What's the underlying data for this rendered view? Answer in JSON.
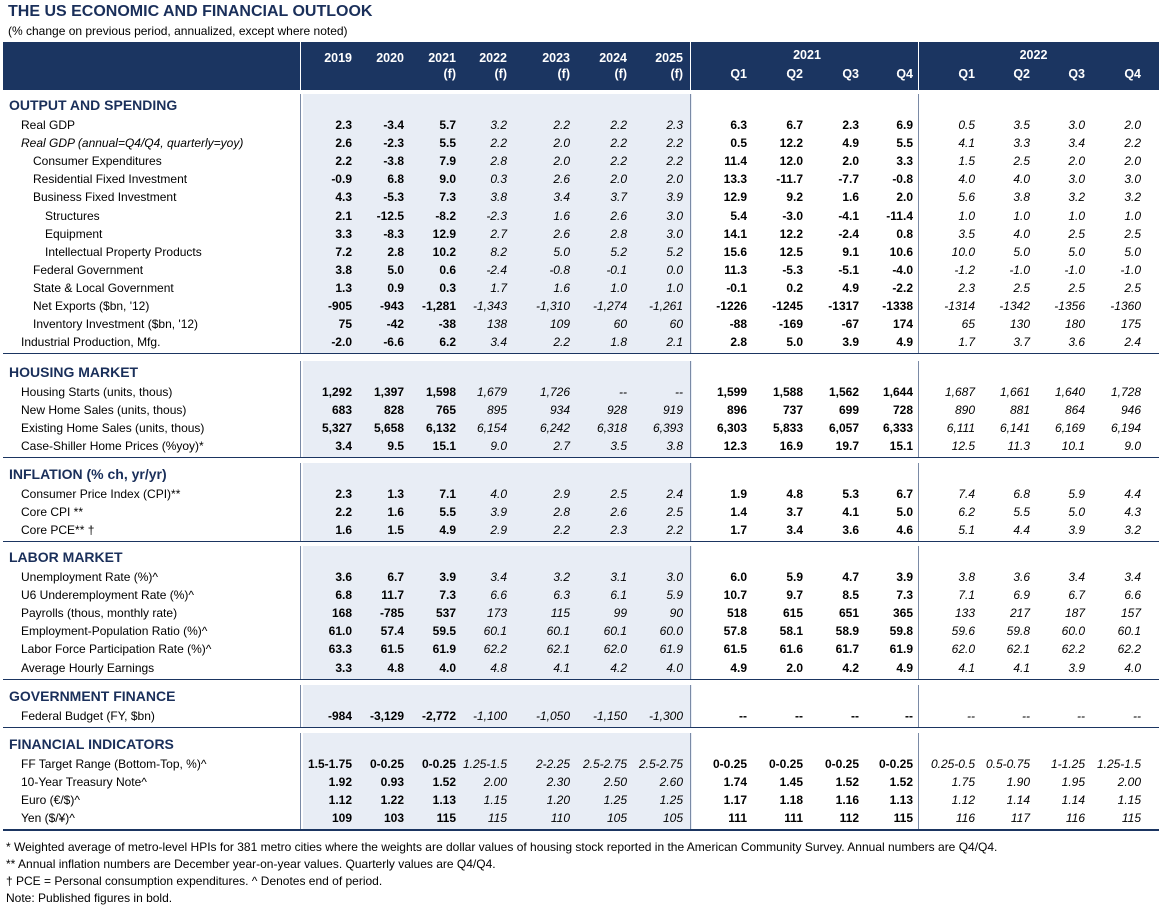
{
  "title": "THE US ECONOMIC AND FINANCIAL OUTLOOK",
  "subtitle": "(% change on previous period, annualized, except where noted)",
  "header": {
    "years": [
      {
        "l1": "2019",
        "l2": ""
      },
      {
        "l1": "2020",
        "l2": ""
      },
      {
        "l1": "2021",
        "l2": "(f)"
      },
      {
        "l1": "2022",
        "l2": "(f)"
      },
      {
        "l1": "2023",
        "l2": "(f)"
      },
      {
        "l1": "2024",
        "l2": "(f)"
      },
      {
        "l1": "2025",
        "l2": "(f)"
      }
    ],
    "group_2021": "2021",
    "group_2022": "2022",
    "quarters": [
      "Q1",
      "Q2",
      "Q3",
      "Q4",
      "Q1",
      "Q2",
      "Q3",
      "Q4"
    ]
  },
  "sections": [
    {
      "title": "OUTPUT AND SPENDING",
      "rows": [
        {
          "label": "Real GDP",
          "indent": 1,
          "italic": false,
          "values": [
            "2.3",
            "-3.4",
            "5.7",
            "3.2",
            "2.2",
            "2.2",
            "2.3",
            "6.3",
            "6.7",
            "2.3",
            "6.9",
            "0.5",
            "3.5",
            "3.0",
            "2.0"
          ]
        },
        {
          "label": "Real GDP (annual=Q4/Q4, quarterly=yoy)",
          "indent": 1,
          "italic": true,
          "values": [
            "2.6",
            "-2.3",
            "5.5",
            "2.2",
            "2.0",
            "2.2",
            "2.2",
            "0.5",
            "12.2",
            "4.9",
            "5.5",
            "4.1",
            "3.3",
            "3.4",
            "2.2"
          ]
        },
        {
          "label": "Consumer Expenditures",
          "indent": 2,
          "italic": false,
          "values": [
            "2.2",
            "-3.8",
            "7.9",
            "2.8",
            "2.0",
            "2.2",
            "2.2",
            "11.4",
            "12.0",
            "2.0",
            "3.3",
            "1.5",
            "2.5",
            "2.0",
            "2.0"
          ]
        },
        {
          "label": "Residential Fixed Investment",
          "indent": 2,
          "italic": false,
          "values": [
            "-0.9",
            "6.8",
            "9.0",
            "0.3",
            "2.6",
            "2.0",
            "2.0",
            "13.3",
            "-11.7",
            "-7.7",
            "-0.8",
            "4.0",
            "4.0",
            "3.0",
            "3.0"
          ]
        },
        {
          "label": "Business Fixed Investment",
          "indent": 2,
          "italic": false,
          "values": [
            "4.3",
            "-5.3",
            "7.3",
            "3.8",
            "3.4",
            "3.7",
            "3.9",
            "12.9",
            "9.2",
            "1.6",
            "2.0",
            "5.6",
            "3.8",
            "3.2",
            "3.2"
          ]
        },
        {
          "label": "Structures",
          "indent": 3,
          "italic": false,
          "values": [
            "2.1",
            "-12.5",
            "-8.2",
            "-2.3",
            "1.6",
            "2.6",
            "3.0",
            "5.4",
            "-3.0",
            "-4.1",
            "-11.4",
            "1.0",
            "1.0",
            "1.0",
            "1.0"
          ]
        },
        {
          "label": "Equipment",
          "indent": 3,
          "italic": false,
          "values": [
            "3.3",
            "-8.3",
            "12.9",
            "2.7",
            "2.6",
            "2.8",
            "3.0",
            "14.1",
            "12.2",
            "-2.4",
            "0.8",
            "3.5",
            "4.0",
            "2.5",
            "2.5"
          ]
        },
        {
          "label": "Intellectual Property Products",
          "indent": 3,
          "italic": false,
          "values": [
            "7.2",
            "2.8",
            "10.2",
            "8.2",
            "5.0",
            "5.2",
            "5.2",
            "15.6",
            "12.5",
            "9.1",
            "10.6",
            "10.0",
            "5.0",
            "5.0",
            "5.0"
          ]
        },
        {
          "label": "Federal Government",
          "indent": 2,
          "italic": false,
          "values": [
            "3.8",
            "5.0",
            "0.6",
            "-2.4",
            "-0.8",
            "-0.1",
            "0.0",
            "11.3",
            "-5.3",
            "-5.1",
            "-4.0",
            "-1.2",
            "-1.0",
            "-1.0",
            "-1.0"
          ]
        },
        {
          "label": "State & Local Government",
          "indent": 2,
          "italic": false,
          "values": [
            "1.3",
            "0.9",
            "0.3",
            "1.7",
            "1.6",
            "1.0",
            "1.0",
            "-0.1",
            "0.2",
            "4.9",
            "-2.2",
            "2.3",
            "2.5",
            "2.5",
            "2.5"
          ]
        },
        {
          "label": "Net Exports ($bn, '12)",
          "indent": 2,
          "italic": false,
          "values": [
            "-905",
            "-943",
            "-1,281",
            "-1,343",
            "-1,310",
            "-1,274",
            "-1,261",
            "-1226",
            "-1245",
            "-1317",
            "-1338",
            "-1314",
            "-1342",
            "-1356",
            "-1360"
          ]
        },
        {
          "label": "Inventory Investment ($bn, '12)",
          "indent": 2,
          "italic": false,
          "values": [
            "75",
            "-42",
            "-38",
            "138",
            "109",
            "60",
            "60",
            "-88",
            "-169",
            "-67",
            "174",
            "65",
            "130",
            "180",
            "175"
          ]
        },
        {
          "label": "Industrial Production, Mfg.",
          "indent": 1,
          "italic": false,
          "values": [
            "-2.0",
            "-6.6",
            "6.2",
            "3.4",
            "2.2",
            "1.8",
            "2.1",
            "2.8",
            "5.0",
            "3.9",
            "4.9",
            "1.7",
            "3.7",
            "3.6",
            "2.4"
          ]
        }
      ]
    },
    {
      "title": "HOUSING MARKET",
      "rows": [
        {
          "label": "Housing Starts (units, thous)",
          "indent": 1,
          "italic": false,
          "values": [
            "1,292",
            "1,397",
            "1,598",
            "1,679",
            "1,726",
            "--",
            "--",
            "1,599",
            "1,588",
            "1,562",
            "1,644",
            "1,687",
            "1,661",
            "1,640",
            "1,728"
          ]
        },
        {
          "label": "New Home Sales (units, thous)",
          "indent": 1,
          "italic": false,
          "values": [
            "683",
            "828",
            "765",
            "895",
            "934",
            "928",
            "919",
            "896",
            "737",
            "699",
            "728",
            "890",
            "881",
            "864",
            "946"
          ]
        },
        {
          "label": "Existing Home Sales (units, thous)",
          "indent": 1,
          "italic": false,
          "values": [
            "5,327",
            "5,658",
            "6,132",
            "6,154",
            "6,242",
            "6,318",
            "6,393",
            "6,303",
            "5,833",
            "6,057",
            "6,333",
            "6,111",
            "6,141",
            "6,169",
            "6,194"
          ]
        },
        {
          "label": "Case-Shiller Home Prices (%yoy)*",
          "indent": 1,
          "italic": false,
          "values": [
            "3.4",
            "9.5",
            "15.1",
            "9.0",
            "2.7",
            "3.5",
            "3.8",
            "12.3",
            "16.9",
            "19.7",
            "15.1",
            "12.5",
            "11.3",
            "10.1",
            "9.0"
          ]
        }
      ]
    },
    {
      "title": "INFLATION (% ch, yr/yr)",
      "rows": [
        {
          "label": "Consumer Price Index (CPI)**",
          "indent": 1,
          "italic": false,
          "values": [
            "2.3",
            "1.3",
            "7.1",
            "4.0",
            "2.9",
            "2.5",
            "2.4",
            "1.9",
            "4.8",
            "5.3",
            "6.7",
            "7.4",
            "6.8",
            "5.9",
            "4.4"
          ]
        },
        {
          "label": "Core CPI **",
          "indent": 1,
          "italic": false,
          "values": [
            "2.2",
            "1.6",
            "5.5",
            "3.9",
            "2.8",
            "2.6",
            "2.5",
            "1.4",
            "3.7",
            "4.1",
            "5.0",
            "6.2",
            "5.5",
            "5.0",
            "4.3"
          ]
        },
        {
          "label": "Core PCE** †",
          "indent": 1,
          "italic": false,
          "values": [
            "1.6",
            "1.5",
            "4.9",
            "2.9",
            "2.2",
            "2.3",
            "2.2",
            "1.7",
            "3.4",
            "3.6",
            "4.6",
            "5.1",
            "4.4",
            "3.9",
            "3.2"
          ]
        }
      ]
    },
    {
      "title": "LABOR MARKET",
      "rows": [
        {
          "label": "Unemployment Rate (%)^",
          "indent": 1,
          "italic": false,
          "values": [
            "3.6",
            "6.7",
            "3.9",
            "3.4",
            "3.2",
            "3.1",
            "3.0",
            "6.0",
            "5.9",
            "4.7",
            "3.9",
            "3.8",
            "3.6",
            "3.4",
            "3.4"
          ]
        },
        {
          "label": "U6 Underemployment Rate (%)^",
          "indent": 1,
          "italic": false,
          "values": [
            "6.8",
            "11.7",
            "7.3",
            "6.6",
            "6.3",
            "6.1",
            "5.9",
            "10.7",
            "9.7",
            "8.5",
            "7.3",
            "7.1",
            "6.9",
            "6.7",
            "6.6"
          ]
        },
        {
          "label": "Payrolls (thous, monthly rate)",
          "indent": 1,
          "italic": false,
          "values": [
            "168",
            "-785",
            "537",
            "173",
            "115",
            "99",
            "90",
            "518",
            "615",
            "651",
            "365",
            "133",
            "217",
            "187",
            "157"
          ]
        },
        {
          "label": "Employment-Population Ratio (%)^",
          "indent": 1,
          "italic": false,
          "values": [
            "61.0",
            "57.4",
            "59.5",
            "60.1",
            "60.1",
            "60.1",
            "60.0",
            "57.8",
            "58.1",
            "58.9",
            "59.8",
            "59.6",
            "59.8",
            "60.0",
            "60.1"
          ]
        },
        {
          "label": "Labor Force Participation Rate (%)^",
          "indent": 1,
          "italic": false,
          "values": [
            "63.3",
            "61.5",
            "61.9",
            "62.2",
            "62.1",
            "62.0",
            "61.9",
            "61.5",
            "61.6",
            "61.7",
            "61.9",
            "62.0",
            "62.1",
            "62.2",
            "62.2"
          ]
        },
        {
          "label": "Average Hourly Earnings",
          "indent": 1,
          "italic": false,
          "values": [
            "3.3",
            "4.8",
            "4.0",
            "4.8",
            "4.1",
            "4.2",
            "4.0",
            "4.9",
            "2.0",
            "4.2",
            "4.9",
            "4.1",
            "4.1",
            "3.9",
            "4.0"
          ]
        }
      ]
    },
    {
      "title": "GOVERNMENT FINANCE",
      "rows": [
        {
          "label": "Federal Budget (FY, $bn)",
          "indent": 1,
          "italic": false,
          "values": [
            "-984",
            "-3,129",
            "-2,772",
            "-1,100",
            "-1,050",
            "-1,150",
            "-1,300",
            "--",
            "--",
            "--",
            "--",
            "--",
            "--",
            "--",
            "--"
          ]
        }
      ]
    },
    {
      "title": "FINANCIAL INDICATORS",
      "rows": [
        {
          "label": "FF Target Range (Bottom-Top, %)^",
          "indent": 1,
          "italic": false,
          "values": [
            "1.5-1.75",
            "0-0.25",
            "0-0.25",
            "1.25-1.5",
            "2-2.25",
            "2.5-2.75",
            "2.5-2.75",
            "0-0.25",
            "0-0.25",
            "0-0.25",
            "0-0.25",
            "0.25-0.5",
            "0.5-0.75",
            "1-1.25",
            "1.25-1.5"
          ]
        },
        {
          "label": "10-Year Treasury Note^",
          "indent": 1,
          "italic": false,
          "values": [
            "1.92",
            "0.93",
            "1.52",
            "2.00",
            "2.30",
            "2.50",
            "2.60",
            "1.74",
            "1.45",
            "1.52",
            "1.52",
            "1.75",
            "1.90",
            "1.95",
            "2.00"
          ]
        },
        {
          "label": "Euro (€/$)^",
          "indent": 1,
          "italic": false,
          "values": [
            "1.12",
            "1.22",
            "1.13",
            "1.15",
            "1.20",
            "1.25",
            "1.25",
            "1.17",
            "1.18",
            "1.16",
            "1.13",
            "1.12",
            "1.14",
            "1.14",
            "1.15"
          ]
        },
        {
          "label": "Yen ($/¥)^",
          "indent": 1,
          "italic": false,
          "values": [
            "109",
            "103",
            "115",
            "115",
            "110",
            "105",
            "105",
            "111",
            "111",
            "112",
            "115",
            "116",
            "117",
            "116",
            "115"
          ]
        }
      ]
    }
  ],
  "notes": [
    "* Weighted average of metro-level HPIs for 381 metro cities where the weights are dollar values of housing stock reported in the American Community Survey. Annual numbers are Q4/Q4.",
    "** Annual inflation numbers are December year-on-year values. Quarterly values are Q4/Q4.",
    "† PCE = Personal consumption expenditures.  ^ Denotes end of period.",
    "Note: Published figures in bold."
  ]
}
